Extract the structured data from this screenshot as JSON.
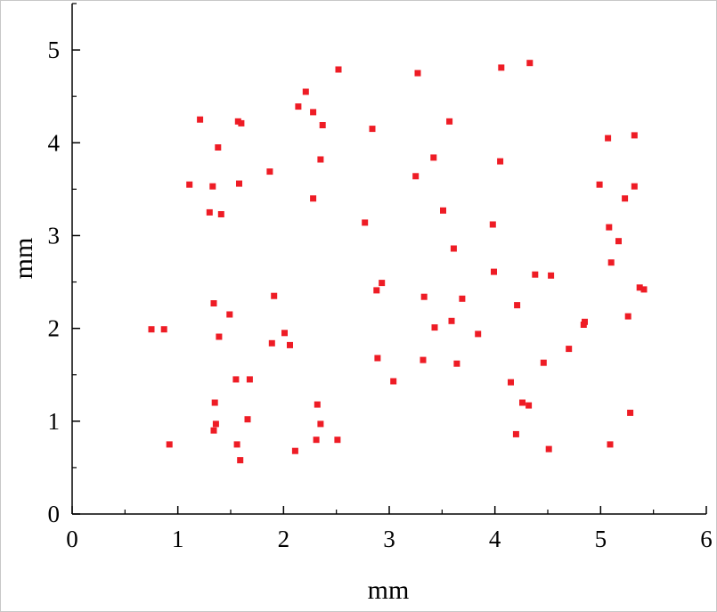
{
  "chart_data": {
    "type": "scatter",
    "title": "",
    "xlabel": "mm",
    "ylabel": "mm",
    "xlim": [
      0,
      6
    ],
    "ylim": [
      0,
      5.5
    ],
    "xticks": [
      "0",
      "1",
      "2",
      "3",
      "4",
      "5",
      "6"
    ],
    "yticks": [
      "0",
      "1",
      "2",
      "3",
      "4",
      "5"
    ],
    "grid": false,
    "legend": "none",
    "marker_color": "#ee1c25",
    "marker_shape": "square",
    "series": [
      {
        "points": [
          [
            0.75,
            1.99
          ],
          [
            0.87,
            1.99
          ],
          [
            0.92,
            0.75
          ],
          [
            1.11,
            3.55
          ],
          [
            1.21,
            4.25
          ],
          [
            1.3,
            3.25
          ],
          [
            1.33,
            3.53
          ],
          [
            1.34,
            0.9
          ],
          [
            1.34,
            2.27
          ],
          [
            1.35,
            1.2
          ],
          [
            1.36,
            0.97
          ],
          [
            1.38,
            3.95
          ],
          [
            1.39,
            1.91
          ],
          [
            1.41,
            3.23
          ],
          [
            1.49,
            2.15
          ],
          [
            1.55,
            1.45
          ],
          [
            1.56,
            0.75
          ],
          [
            1.57,
            4.23
          ],
          [
            1.58,
            3.56
          ],
          [
            1.59,
            0.58
          ],
          [
            1.6,
            4.21
          ],
          [
            1.66,
            1.02
          ],
          [
            1.68,
            1.45
          ],
          [
            1.87,
            3.69
          ],
          [
            1.89,
            1.84
          ],
          [
            1.91,
            2.35
          ],
          [
            2.01,
            1.95
          ],
          [
            2.06,
            1.82
          ],
          [
            2.11,
            0.68
          ],
          [
            2.14,
            4.39
          ],
          [
            2.21,
            4.55
          ],
          [
            2.28,
            3.4
          ],
          [
            2.28,
            4.33
          ],
          [
            2.31,
            0.8
          ],
          [
            2.32,
            1.18
          ],
          [
            2.35,
            0.97
          ],
          [
            2.35,
            3.82
          ],
          [
            2.37,
            4.19
          ],
          [
            2.51,
            0.8
          ],
          [
            2.52,
            4.79
          ],
          [
            2.77,
            3.14
          ],
          [
            2.84,
            4.15
          ],
          [
            2.88,
            2.41
          ],
          [
            2.89,
            1.68
          ],
          [
            2.93,
            2.49
          ],
          [
            3.04,
            1.43
          ],
          [
            3.25,
            3.64
          ],
          [
            3.27,
            4.75
          ],
          [
            3.32,
            1.66
          ],
          [
            3.33,
            2.34
          ],
          [
            3.42,
            3.84
          ],
          [
            3.43,
            2.01
          ],
          [
            3.51,
            3.27
          ],
          [
            3.57,
            4.23
          ],
          [
            3.59,
            2.08
          ],
          [
            3.61,
            2.86
          ],
          [
            3.64,
            1.62
          ],
          [
            3.69,
            2.32
          ],
          [
            3.84,
            1.94
          ],
          [
            3.98,
            3.12
          ],
          [
            3.99,
            2.61
          ],
          [
            4.05,
            3.8
          ],
          [
            4.06,
            4.81
          ],
          [
            4.15,
            1.42
          ],
          [
            4.2,
            0.86
          ],
          [
            4.21,
            2.25
          ],
          [
            4.26,
            1.2
          ],
          [
            4.32,
            1.17
          ],
          [
            4.33,
            4.86
          ],
          [
            4.38,
            2.58
          ],
          [
            4.46,
            1.63
          ],
          [
            4.51,
            0.7
          ],
          [
            4.53,
            2.57
          ],
          [
            4.7,
            1.78
          ],
          [
            4.84,
            2.04
          ],
          [
            4.85,
            2.07
          ],
          [
            4.99,
            3.55
          ],
          [
            5.07,
            4.05
          ],
          [
            5.08,
            3.09
          ],
          [
            5.09,
            0.75
          ],
          [
            5.1,
            2.71
          ],
          [
            5.17,
            2.94
          ],
          [
            5.23,
            3.4
          ],
          [
            5.26,
            2.13
          ],
          [
            5.28,
            1.09
          ],
          [
            5.32,
            4.08
          ],
          [
            5.32,
            3.53
          ],
          [
            5.37,
            2.44
          ],
          [
            5.41,
            2.42
          ]
        ]
      }
    ]
  }
}
